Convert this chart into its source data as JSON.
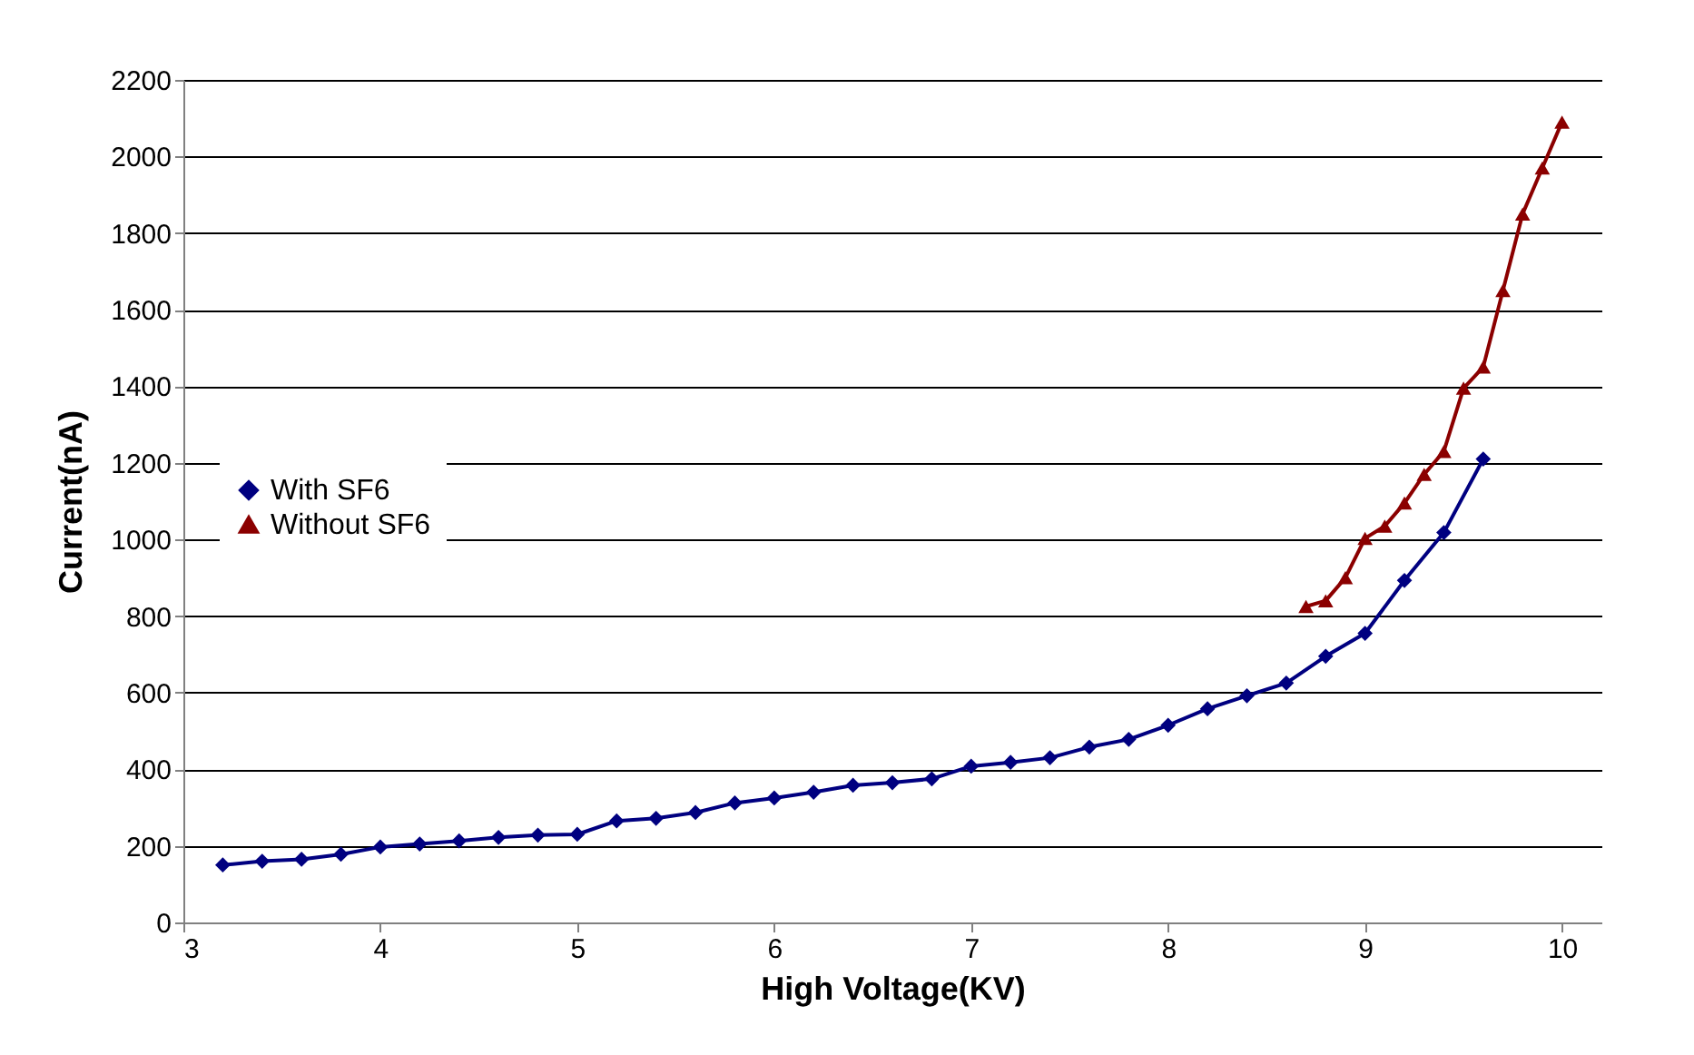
{
  "chart_data": {
    "type": "line",
    "xlabel": "High Voltage(KV)",
    "ylabel": "Current(nA)",
    "xlim": [
      3,
      10.2
    ],
    "xticks": [
      3,
      4,
      5,
      6,
      7,
      8,
      9,
      10
    ],
    "ylim": [
      0,
      2200
    ],
    "yticks": [
      0,
      200,
      400,
      600,
      800,
      1000,
      1200,
      1400,
      1600,
      1800,
      2000,
      2200
    ],
    "grid": "y",
    "legend": "left",
    "series": [
      {
        "name": "With SF6",
        "color": "#000080",
        "marker": "diamond",
        "x": [
          3.2,
          3.4,
          3.6,
          3.8,
          4.0,
          4.2,
          4.4,
          4.6,
          4.8,
          5.0,
          5.2,
          5.4,
          5.6,
          5.8,
          6.0,
          6.2,
          6.4,
          6.6,
          6.8,
          7.0,
          7.2,
          7.4,
          7.6,
          7.8,
          8.0,
          8.2,
          8.4,
          8.6,
          8.8,
          9.0,
          9.2,
          9.4,
          9.6
        ],
        "values": [
          150,
          160,
          165,
          178,
          197,
          205,
          213,
          222,
          228,
          230,
          265,
          272,
          287,
          312,
          325,
          340,
          358,
          365,
          375,
          408,
          418,
          430,
          458,
          478,
          515,
          558,
          592,
          625,
          695,
          755,
          893,
          1018,
          1210
        ]
      },
      {
        "name": "Without SF6",
        "color": "#8b0000",
        "marker": "triangle",
        "x": [
          8.7,
          8.8,
          8.9,
          9.0,
          9.1,
          9.2,
          9.3,
          9.4,
          9.5,
          9.6,
          9.7,
          9.8,
          9.9,
          10.0
        ],
        "values": [
          825,
          840,
          900,
          1003,
          1035,
          1095,
          1170,
          1230,
          1395,
          1450,
          1650,
          1850,
          1970,
          2090
        ]
      }
    ]
  }
}
